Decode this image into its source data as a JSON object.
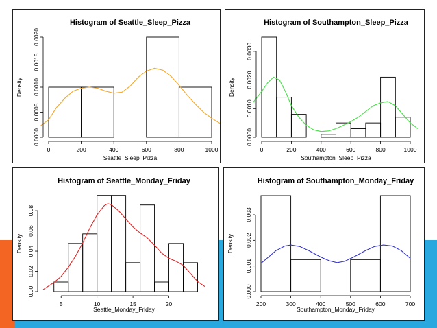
{
  "theme": {
    "orange": "#f26522",
    "blue": "#29a8e0",
    "frame": "#222222"
  },
  "chart_data": [
    {
      "type": "histogram",
      "title": "Histogram of Seattle_Sleep_Pizza",
      "xlabel": "Seattle_Sleep_Pizza",
      "ylabel": "Density",
      "xlim": [
        0,
        1000
      ],
      "ylim": [
        0,
        0.002
      ],
      "xticks": [
        "0",
        "200",
        "400",
        "600",
        "800",
        "1000"
      ],
      "xtick_values": [
        0,
        200,
        400,
        600,
        800,
        1000
      ],
      "yticks": [
        "0.0000",
        "0.0005",
        "0.0010",
        "0.0015",
        "0.0020"
      ],
      "ytick_values": [
        0,
        0.0005,
        0.001,
        0.0015,
        0.002
      ],
      "bins": [
        {
          "x0": 0,
          "x1": 200,
          "density": 0.001
        },
        {
          "x0": 200,
          "x1": 400,
          "density": 0.001
        },
        {
          "x0": 400,
          "x1": 600,
          "density": 0
        },
        {
          "x0": 600,
          "x1": 800,
          "density": 0.002
        },
        {
          "x0": 800,
          "x1": 1000,
          "density": 0.001
        }
      ],
      "curve_color": "#f5a623",
      "curve": [
        [
          -60,
          0.0002
        ],
        [
          0,
          0.00035
        ],
        [
          50,
          0.0006
        ],
        [
          100,
          0.00078
        ],
        [
          150,
          0.00092
        ],
        [
          200,
          0.00098
        ],
        [
          250,
          0.001
        ],
        [
          300,
          0.00098
        ],
        [
          350,
          0.00092
        ],
        [
          400,
          0.00088
        ],
        [
          450,
          0.0009
        ],
        [
          500,
          0.00102
        ],
        [
          550,
          0.0012
        ],
        [
          600,
          0.00132
        ],
        [
          650,
          0.00138
        ],
        [
          700,
          0.00134
        ],
        [
          750,
          0.00122
        ],
        [
          800,
          0.00104
        ],
        [
          850,
          0.00084
        ],
        [
          900,
          0.00066
        ],
        [
          950,
          0.0005
        ],
        [
          1000,
          0.00038
        ],
        [
          1060,
          0.00026
        ]
      ]
    },
    {
      "type": "histogram",
      "title": "Histogram of Southampton_Sleep_Pizza",
      "xlabel": "Southampton_Sleep_Pizza",
      "ylabel": "Density",
      "xlim": [
        0,
        1000
      ],
      "ylim": [
        0,
        0.0035
      ],
      "xticks": [
        "0",
        "200",
        "400",
        "600",
        "800",
        "1000"
      ],
      "xtick_values": [
        0,
        200,
        400,
        600,
        800,
        1000
      ],
      "yticks": [
        "0.0000",
        "0.0010",
        "0.0020",
        "0.0030"
      ],
      "ytick_values": [
        0,
        0.001,
        0.002,
        0.003
      ],
      "bins": [
        {
          "x0": 0,
          "x1": 100,
          "density": 0.0035
        },
        {
          "x0": 100,
          "x1": 200,
          "density": 0.0014
        },
        {
          "x0": 200,
          "x1": 300,
          "density": 0.0008
        },
        {
          "x0": 300,
          "x1": 400,
          "density": 0
        },
        {
          "x0": 400,
          "x1": 500,
          "density": 0.0001
        },
        {
          "x0": 500,
          "x1": 600,
          "density": 0.0005
        },
        {
          "x0": 600,
          "x1": 700,
          "density": 0.0003
        },
        {
          "x0": 700,
          "x1": 800,
          "density": 0.0005
        },
        {
          "x0": 800,
          "x1": 900,
          "density": 0.0021
        },
        {
          "x0": 900,
          "x1": 1000,
          "density": 0.0007
        }
      ],
      "curve_color": "#44e044",
      "curve": [
        [
          -60,
          0.0012
        ],
        [
          0,
          0.0016
        ],
        [
          40,
          0.0019
        ],
        [
          80,
          0.0021
        ],
        [
          120,
          0.002
        ],
        [
          160,
          0.0016
        ],
        [
          200,
          0.0011
        ],
        [
          250,
          0.0007
        ],
        [
          300,
          0.00042
        ],
        [
          350,
          0.00026
        ],
        [
          400,
          0.0002
        ],
        [
          450,
          0.00022
        ],
        [
          500,
          0.0003
        ],
        [
          550,
          0.00042
        ],
        [
          600,
          0.00055
        ],
        [
          650,
          0.0007
        ],
        [
          700,
          0.0009
        ],
        [
          750,
          0.0011
        ],
        [
          800,
          0.0012
        ],
        [
          850,
          0.00125
        ],
        [
          900,
          0.0011
        ],
        [
          950,
          0.0008
        ],
        [
          1000,
          0.0005
        ],
        [
          1050,
          0.0003
        ]
      ]
    },
    {
      "type": "histogram",
      "title": "Histogram of Seattle_Monday_Friday",
      "xlabel": "Seattle_Monday_Friday",
      "ylabel": "Density",
      "xlim": [
        2.5,
        25
      ],
      "ylim": [
        0,
        0.095
      ],
      "xticks": [
        "5",
        "10",
        "15",
        "20"
      ],
      "xtick_values": [
        5,
        10,
        15,
        20
      ],
      "yticks": [
        "0.00",
        "0.02",
        "0.04",
        "0.06",
        "0.08"
      ],
      "ytick_values": [
        0,
        0.02,
        0.04,
        0.06,
        0.08
      ],
      "bins": [
        {
          "x0": 4,
          "x1": 6,
          "density": 0.0095
        },
        {
          "x0": 6,
          "x1": 8,
          "density": 0.0476
        },
        {
          "x0": 8,
          "x1": 10,
          "density": 0.0571
        },
        {
          "x0": 10,
          "x1": 12,
          "density": 0.0952
        },
        {
          "x0": 12,
          "x1": 14,
          "density": 0.0952
        },
        {
          "x0": 14,
          "x1": 16,
          "density": 0.0286
        },
        {
          "x0": 16,
          "x1": 18,
          "density": 0.0857
        },
        {
          "x0": 18,
          "x1": 20,
          "density": 0.0095
        },
        {
          "x0": 20,
          "x1": 22,
          "density": 0.0476
        },
        {
          "x0": 22,
          "x1": 24,
          "density": 0.0286
        }
      ],
      "curve_color": "#e02020",
      "curve": [
        [
          2.5,
          0.002
        ],
        [
          4,
          0.009
        ],
        [
          5,
          0.015
        ],
        [
          6,
          0.024
        ],
        [
          7,
          0.035
        ],
        [
          8,
          0.048
        ],
        [
          9,
          0.063
        ],
        [
          10,
          0.076
        ],
        [
          11,
          0.085
        ],
        [
          11.5,
          0.087
        ],
        [
          12,
          0.086
        ],
        [
          13,
          0.08
        ],
        [
          14,
          0.072
        ],
        [
          15,
          0.064
        ],
        [
          16,
          0.058
        ],
        [
          17,
          0.053
        ],
        [
          18,
          0.046
        ],
        [
          19,
          0.038
        ],
        [
          20,
          0.033
        ],
        [
          21,
          0.03
        ],
        [
          22,
          0.026
        ],
        [
          23,
          0.018
        ],
        [
          24,
          0.01
        ],
        [
          25,
          0.005
        ]
      ]
    },
    {
      "type": "histogram",
      "title": "Histogram of Southampton_Monday_Friday",
      "xlabel": "Southampton_Monday_Friday",
      "ylabel": "Density",
      "xlim": [
        200,
        700
      ],
      "ylim": [
        0,
        0.00375
      ],
      "xticks": [
        "200",
        "300",
        "400",
        "500",
        "600",
        "700"
      ],
      "xtick_values": [
        200,
        300,
        400,
        500,
        600,
        700
      ],
      "yticks": [
        "0.000",
        "0.001",
        "0.002",
        "0.003"
      ],
      "ytick_values": [
        0,
        0.001,
        0.002,
        0.003
      ],
      "bins": [
        {
          "x0": 200,
          "x1": 300,
          "density": 0.00375
        },
        {
          "x0": 300,
          "x1": 400,
          "density": 0.00125
        },
        {
          "x0": 400,
          "x1": 500,
          "density": 0
        },
        {
          "x0": 500,
          "x1": 600,
          "density": 0.00125
        },
        {
          "x0": 600,
          "x1": 700,
          "density": 0.00375
        }
      ],
      "curve_color": "#3030d0",
      "curve": [
        [
          200,
          0.0011
        ],
        [
          220,
          0.0013
        ],
        [
          250,
          0.0016
        ],
        [
          280,
          0.00178
        ],
        [
          300,
          0.00182
        ],
        [
          330,
          0.00176
        ],
        [
          360,
          0.0016
        ],
        [
          400,
          0.00135
        ],
        [
          430,
          0.0012
        ],
        [
          455,
          0.00113
        ],
        [
          480,
          0.00118
        ],
        [
          510,
          0.00135
        ],
        [
          550,
          0.0016
        ],
        [
          580,
          0.00176
        ],
        [
          610,
          0.00182
        ],
        [
          640,
          0.00178
        ],
        [
          670,
          0.0016
        ],
        [
          700,
          0.0013
        ]
      ]
    }
  ]
}
